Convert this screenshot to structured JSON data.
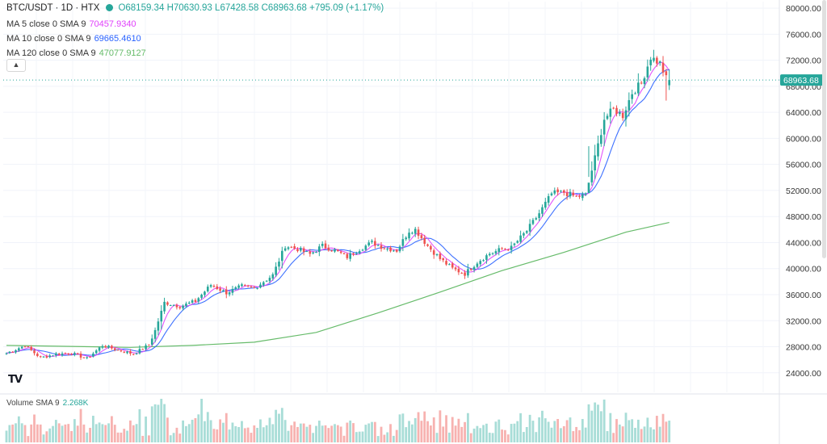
{
  "header": {
    "symbol": "BTC/USDT · 1D · HTX",
    "open": "O68159.34",
    "high": "H70630.93",
    "low": "L67428.58",
    "close": "C68963.68",
    "change": "+795.09 (+1.17%)"
  },
  "indicators": [
    {
      "label": "MA 5 close 0 SMA 9",
      "value": "70457.9340",
      "color": "#e040fb"
    },
    {
      "label": "MA 10 close 0 SMA 9",
      "value": "69665.4610",
      "color": "#2962ff"
    },
    {
      "label": "MA 120 close 0 SMA 9",
      "value": "47077.9127",
      "color": "#66bb6a"
    }
  ],
  "collapse_icon": "chevron-up-icon",
  "volume": {
    "label": "Volume SMA 9",
    "value": "2.268K"
  },
  "logo": "TV",
  "price_tag": "68963.68",
  "colors": {
    "up": "#26a69a",
    "down": "#ef5350",
    "upVol": "#a8ddd7",
    "downVol": "#f7b2b0"
  },
  "chart_data": {
    "type": "candlestick",
    "y_axis": {
      "ticks": [
        "80000.00",
        "76000.00",
        "72000.00",
        "68000.00",
        "64000.00",
        "60000.00",
        "56000.00",
        "52000.00",
        "48000.00",
        "44000.00",
        "40000.00",
        "36000.00",
        "32000.00",
        "28000.00",
        "24000.00"
      ],
      "range": [
        21000,
        81000
      ],
      "position": "right"
    },
    "last_price": 68963.68,
    "anchors": [
      [
        0,
        27000
      ],
      [
        6,
        28200
      ],
      [
        11,
        26300
      ],
      [
        16,
        26900
      ],
      [
        21,
        27000
      ],
      [
        26,
        26200
      ],
      [
        31,
        28200
      ],
      [
        36,
        27500
      ],
      [
        41,
        26900
      ],
      [
        46,
        28300
      ],
      [
        48,
        30500
      ],
      [
        51,
        34800
      ],
      [
        56,
        34200
      ],
      [
        61,
        35000
      ],
      [
        66,
        37500
      ],
      [
        71,
        36300
      ],
      [
        76,
        37300
      ],
      [
        80,
        37000
      ],
      [
        86,
        39000
      ],
      [
        90,
        43500
      ],
      [
        94,
        43000
      ],
      [
        98,
        42200
      ],
      [
        102,
        43500
      ],
      [
        106,
        42800
      ],
      [
        110,
        41800
      ],
      [
        114,
        43000
      ],
      [
        118,
        44000
      ],
      [
        122,
        43200
      ],
      [
        126,
        42800
      ],
      [
        130,
        45800
      ],
      [
        132,
        46000
      ],
      [
        136,
        43500
      ],
      [
        140,
        41500
      ],
      [
        144,
        40000
      ],
      [
        148,
        39200
      ],
      [
        152,
        41000
      ],
      [
        156,
        42300
      ],
      [
        160,
        43000
      ],
      [
        163,
        43200
      ],
      [
        168,
        45800
      ],
      [
        172,
        48500
      ],
      [
        176,
        51500
      ],
      [
        180,
        51700
      ],
      [
        184,
        51000
      ],
      [
        187,
        51300
      ],
      [
        190,
        57000
      ],
      [
        193,
        63000
      ],
      [
        196,
        64500
      ],
      [
        199,
        63500
      ],
      [
        202,
        67000
      ],
      [
        205,
        68500
      ],
      [
        208,
        72500
      ],
      [
        211,
        71500
      ],
      [
        213,
        69200
      ],
      [
        214,
        68963.68
      ]
    ],
    "series": [
      {
        "name": "MA 5",
        "color": "#e040fb"
      },
      {
        "name": "MA 10",
        "color": "#2962ff"
      },
      {
        "name": "MA 120",
        "color": "#66bb6a"
      }
    ]
  }
}
